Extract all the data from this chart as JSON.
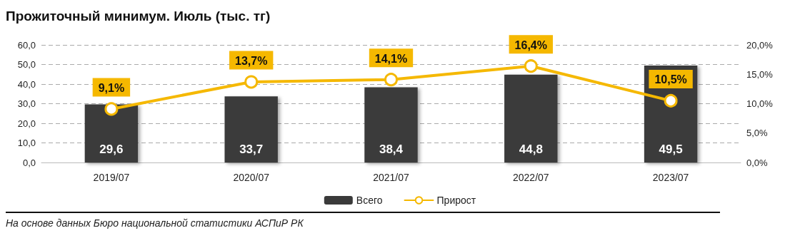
{
  "chart_data": {
    "type": "bar",
    "title": "Прожиточный минимум. Июль (тыс. тг)",
    "categories": [
      "2019/07",
      "2020/07",
      "2021/07",
      "2022/07",
      "2023/07"
    ],
    "series": [
      {
        "name": "Всего",
        "color": "#3a3a3a",
        "values": [
          29.6,
          33.7,
          38.4,
          44.8,
          49.5
        ],
        "value_labels": [
          "29,6",
          "33,7",
          "38,4",
          "44,8",
          "49,5"
        ]
      },
      {
        "name": "Прирост",
        "type": "line",
        "axis": "y2",
        "color": "#f5b800",
        "values": [
          9.1,
          13.7,
          14.1,
          16.4,
          10.5
        ],
        "value_labels": [
          "9,1%",
          "13,7%",
          "14,1%",
          "16,4%",
          "10,5%"
        ]
      }
    ],
    "ylim": [
      0,
      60
    ],
    "yticks": [
      {
        "value": 0,
        "label": "0,0"
      },
      {
        "value": 10,
        "label": "10,0"
      },
      {
        "value": 20,
        "label": "20,0"
      },
      {
        "value": 30,
        "label": "30,0"
      },
      {
        "value": 40,
        "label": "40,0"
      },
      {
        "value": 50,
        "label": "50,0"
      },
      {
        "value": 60,
        "label": "60,0"
      }
    ],
    "y2lim": [
      0,
      20
    ],
    "y2ticks": [
      {
        "value": 0,
        "label": "0,0%"
      },
      {
        "value": 5,
        "label": "5,0%"
      },
      {
        "value": 10,
        "label": "10,0%"
      },
      {
        "value": 15,
        "label": "15,0%"
      },
      {
        "value": 20,
        "label": "20,0%"
      }
    ],
    "grid": "y",
    "legend": "bottom",
    "marker": "circle",
    "annotations": [
      "На основе данных Бюро национальной статистики АСПиР РК"
    ]
  }
}
